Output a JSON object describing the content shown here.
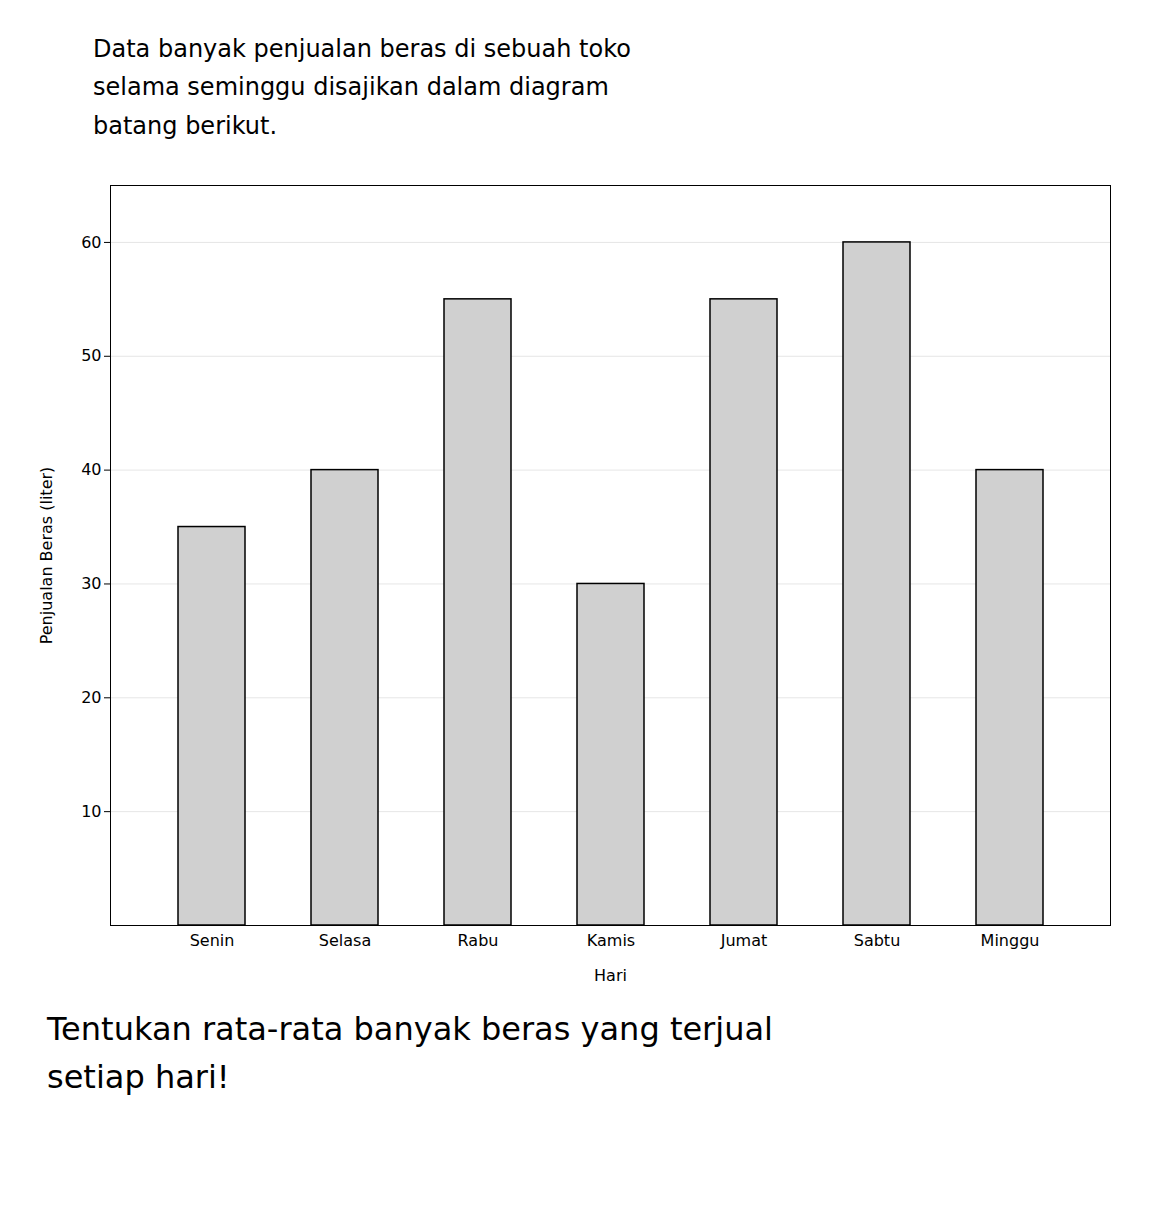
{
  "chart_data": {
    "type": "bar",
    "title": "Data banyak penjualan beras di sebuah toko\nselama seminggu disajikan dalam diagram\nbatang  berikut.",
    "caption": "Tentukan rata-rata banyak beras yang terjual\nsetiap hari!",
    "categories": [
      "Senin",
      "Selasa",
      "Rabu",
      "Kamis",
      "Jumat",
      "Sabtu",
      "Minggu"
    ],
    "values": [
      35,
      40,
      55,
      30,
      55,
      60,
      40
    ],
    "color": "#d0d0d0",
    "xlabel": "Hari",
    "ylabel": "Penjualan Beras (liter)",
    "ylim": [
      0,
      65
    ],
    "yticks": [
      10,
      20,
      30,
      40,
      50,
      60
    ],
    "grid": true
  }
}
